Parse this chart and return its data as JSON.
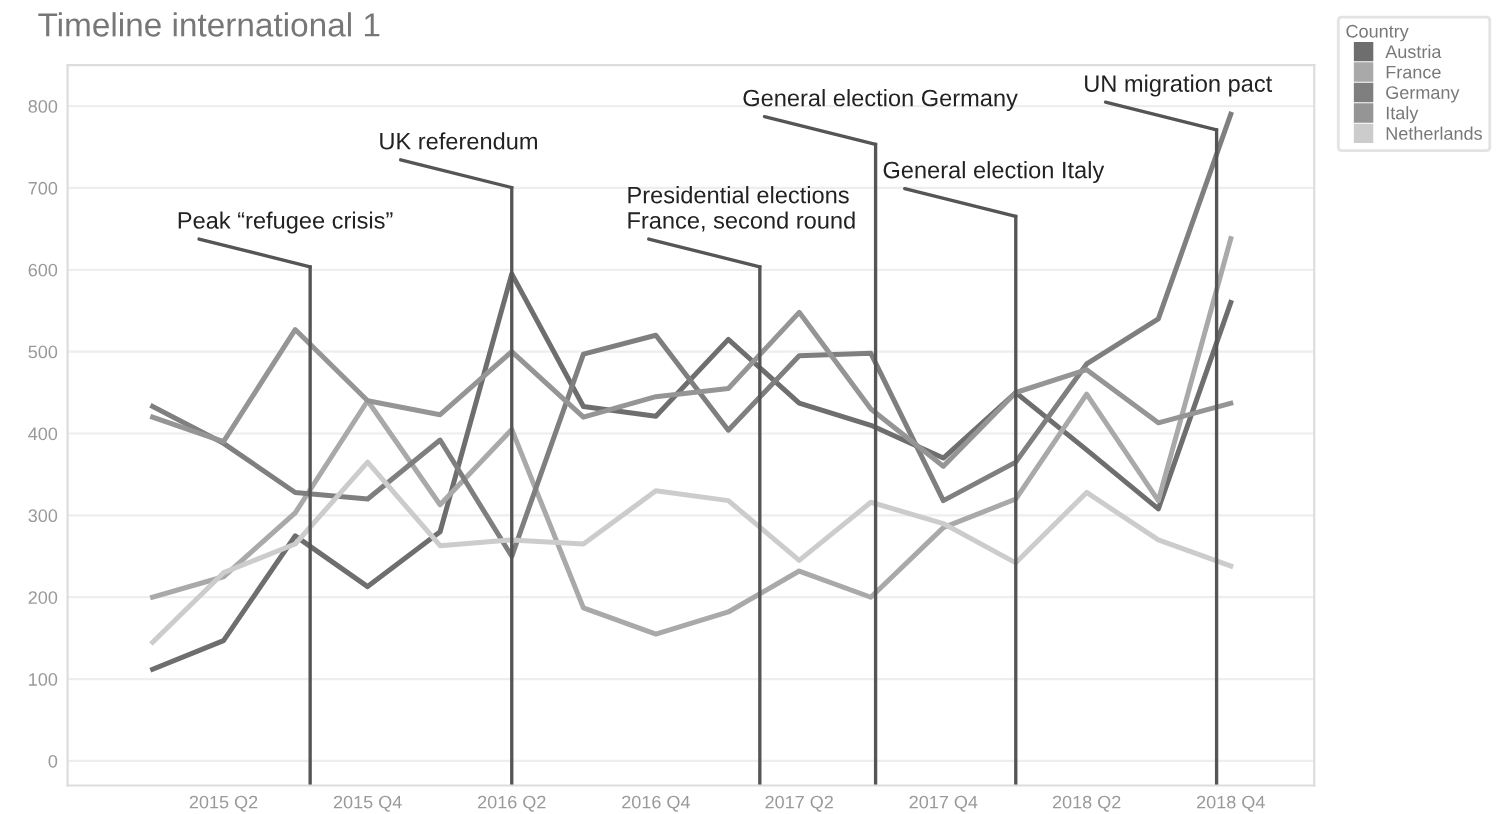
{
  "chart_data": {
    "type": "line",
    "title": "Timeline international 1",
    "legend_title": "Country",
    "legend": "top right",
    "grid": "y",
    "marker": "none",
    "line_style": "solid",
    "x": [
      "2015-01",
      "2015-04",
      "2015-07",
      "2015-10",
      "2016-01",
      "2016-04",
      "2016-07",
      "2016-10",
      "2017-01",
      "2017-04",
      "2017-07",
      "2017-10",
      "2018-01",
      "2018-04",
      "2018-07",
      "2018-10"
    ],
    "xlim": [
      "2014-09-15",
      "2019-01-15"
    ],
    "xticks": [
      {
        "value": "2015-04",
        "label": "2015 Q2"
      },
      {
        "value": "2015-10",
        "label": "2015 Q4"
      },
      {
        "value": "2016-04",
        "label": "2016 Q2"
      },
      {
        "value": "2016-10",
        "label": "2016 Q4"
      },
      {
        "value": "2017-04",
        "label": "2017 Q2"
      },
      {
        "value": "2017-10",
        "label": "2017 Q4"
      },
      {
        "value": "2018-04",
        "label": "2018 Q2"
      },
      {
        "value": "2018-10",
        "label": "2018 Q4"
      }
    ],
    "ylim": [
      -30,
      850
    ],
    "yticks": [
      0,
      100,
      200,
      300,
      400,
      500,
      600,
      700,
      800
    ],
    "series": [
      {
        "name": "Austria",
        "color": "#6e6e6e",
        "values": [
          112,
          147,
          275,
          213,
          280,
          595,
          433,
          421,
          515,
          437,
          410,
          370,
          450,
          380,
          308,
          560
        ]
      },
      {
        "name": "France",
        "color": "#a9a9a9",
        "values": [
          200,
          225,
          303,
          440,
          313,
          405,
          187,
          155,
          182,
          232,
          200,
          285,
          320,
          448,
          318,
          638
        ]
      },
      {
        "name": "Germany",
        "color": "#7f7f7f",
        "values": [
          433,
          388,
          328,
          320,
          392,
          250,
          497,
          520,
          404,
          495,
          498,
          318,
          365,
          485,
          540,
          790
        ]
      },
      {
        "name": "Italy",
        "color": "#959595",
        "values": [
          420,
          390,
          527,
          440,
          423,
          500,
          420,
          445,
          455,
          548,
          430,
          360,
          450,
          478,
          413,
          437
        ]
      },
      {
        "name": "Netherlands",
        "color": "#cccccc",
        "values": [
          145,
          230,
          265,
          365,
          263,
          270,
          265,
          330,
          318,
          245,
          316,
          290,
          242,
          328,
          270,
          238
        ]
      }
    ],
    "ref_lines": [
      {
        "axis": "x",
        "value": "2015-07-20",
        "label": "Peak “refugee crisis”",
        "color": "#555555"
      },
      {
        "axis": "x",
        "value": "2016-04",
        "label": "UK referendum",
        "color": "#555555"
      },
      {
        "axis": "x",
        "value": "2017-02-10",
        "label": "Presidential elections\nFrance, second round",
        "color": "#555555"
      },
      {
        "axis": "x",
        "value": "2017-07-07",
        "label": "General election Germany",
        "color": "#555555"
      },
      {
        "axis": "x",
        "value": "2018-01",
        "label": "General election Italy",
        "color": "#555555"
      },
      {
        "axis": "x",
        "value": "2018-09-13",
        "label": "UN migration pact",
        "color": "#555555"
      }
    ]
  }
}
